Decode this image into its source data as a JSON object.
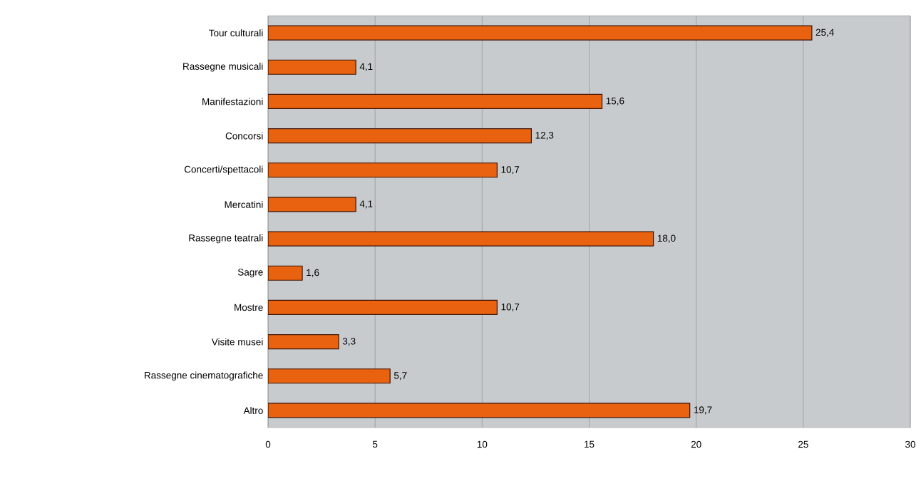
{
  "chart_data": {
    "type": "bar",
    "orientation": "horizontal",
    "categories": [
      "Tour culturali",
      "Rassegne musicali",
      "Manifestazioni",
      "Concorsi",
      "Concerti/spettacoli",
      "Mercatini",
      "Rassegne teatrali",
      "Sagre",
      "Mostre",
      "Visite musei",
      "Rassegne cinematografiche",
      "Altro"
    ],
    "values": [
      25.4,
      4.1,
      15.6,
      12.3,
      10.7,
      4.1,
      18.0,
      1.6,
      10.7,
      3.3,
      5.7,
      19.7
    ],
    "value_labels": [
      "25,4",
      "4,1",
      "15,6",
      "12,3",
      "10,7",
      "4,1",
      "18,0",
      "1,6",
      "10,7",
      "3,3",
      "5,7",
      "19,7"
    ],
    "color": "#e8620f",
    "xlim": [
      0,
      30
    ],
    "xticks": [
      0,
      5,
      10,
      15,
      20,
      25,
      30
    ],
    "grid": "x"
  }
}
